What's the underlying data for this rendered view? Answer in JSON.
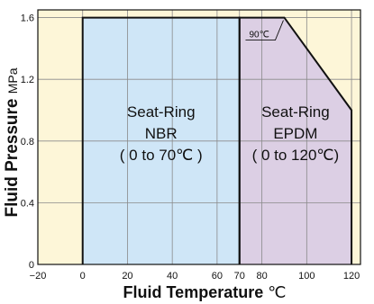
{
  "chart_data": {
    "type": "area",
    "title": "",
    "xlabel": "Fluid Temperature",
    "xlabel_unit": "℃",
    "ylabel": "Fluid Pressure",
    "ylabel_unit": "MPa",
    "xlim": [
      -20,
      124
    ],
    "ylim": [
      0,
      1.65
    ],
    "x_ticks": [
      -20,
      0,
      20,
      40,
      60,
      70,
      80,
      100,
      120
    ],
    "x_tick_labels": [
      "−20",
      "0",
      "20",
      "40",
      "60",
      "70",
      "80",
      "100",
      "120"
    ],
    "y_ticks": [
      0,
      0.4,
      0.8,
      1.2,
      1.6
    ],
    "y_tick_labels": [
      "0",
      "0.4",
      "0.8",
      "1.2",
      "1.6"
    ],
    "grid": true,
    "series": [
      {
        "label_lines": [
          "Seat-Ring",
          "NBR",
          "( 0 to 70℃ )"
        ],
        "color": "#cfe6f7",
        "x": [
          0,
          0,
          70,
          70
        ],
        "y": [
          0,
          1.6,
          1.6,
          0
        ]
      },
      {
        "label_lines": [
          "Seat-Ring",
          "EPDM",
          "( 0 to 120℃)"
        ],
        "color": "#dccfe4",
        "x": [
          70,
          70,
          90,
          120,
          120
        ],
        "y": [
          0,
          1.6,
          1.6,
          1.0,
          0
        ]
      }
    ],
    "annotations": [
      {
        "text": "90℃",
        "x": 90,
        "y": 1.6
      }
    ],
    "colors": {
      "background": "#fdf6d8",
      "grid": "#8a8a8a",
      "outline": "#111111"
    }
  }
}
